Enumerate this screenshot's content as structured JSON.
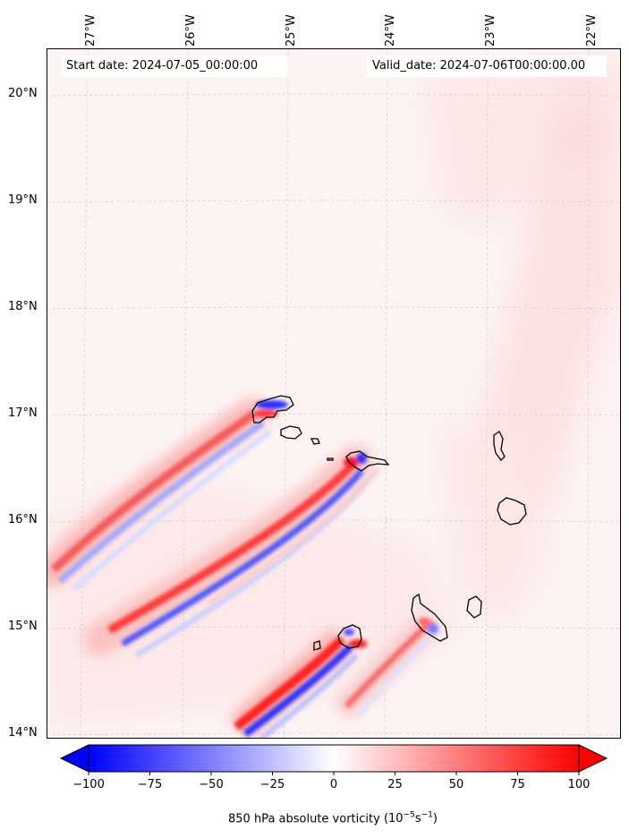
{
  "map": {
    "start_date_text": "Start date: 2024-07-05_00:00:00",
    "valid_date_text": "Valid_date: 2024-07-06T00:00:00.00",
    "longitude_labels": [
      "27°W",
      "26°W",
      "25°W",
      "24°W",
      "23°W",
      "22°W"
    ],
    "latitude_labels": [
      "20°N",
      "19°N",
      "18°N",
      "17°N",
      "16°N",
      "15°N",
      "14°N"
    ],
    "field": "850 hPa absolute vorticity",
    "features": [
      "Santo Antão",
      "São Vicente",
      "Santa Luzia",
      "São Nicolau",
      "Sal",
      "Boa Vista",
      "Santiago",
      "Maio",
      "Fogo",
      "Brava"
    ]
  },
  "colorbar": {
    "label_text": "850 hPa absolute vorticity",
    "units": "(10",
    "units_exp1": "−5",
    "units_mid": "s",
    "units_exp2": "−1",
    "units_close": ")",
    "tick_labels": [
      "−100",
      "−75",
      "−50",
      "−25",
      "0",
      "25",
      "50",
      "75",
      "100"
    ],
    "min": -100,
    "max": 100,
    "colors": {
      "negative": "#0000ff",
      "neutral": "#ffffff",
      "positive": "#ff0000"
    }
  }
}
